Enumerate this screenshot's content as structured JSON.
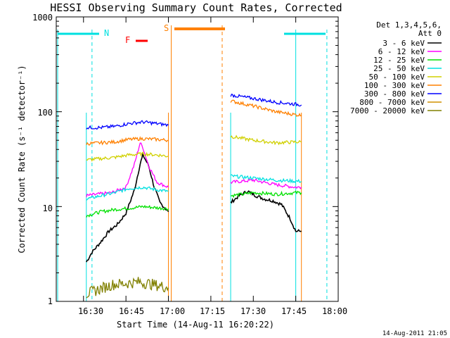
{
  "chart_data": {
    "type": "line",
    "title": "HESSI Observing Summary Count Rates, Corrected",
    "xlabel": "Start Time (14-Aug-11 16:20:22)",
    "ylabel": "Corrected Count Rate (s⁻¹ detector⁻¹)",
    "y_scale": "log",
    "ylim": [
      1,
      1000
    ],
    "xlim": [
      "16:20:22",
      "18:00:00"
    ],
    "x_ticks": [
      "16:30",
      "16:45",
      "17:00",
      "17:15",
      "17:30",
      "17:45",
      "18:00"
    ],
    "y_ticks": [
      "1",
      "10",
      "100",
      "1000"
    ],
    "footer_date": "14-Aug-2011 21:05",
    "legend": {
      "header": [
        "Det 1,3,4,5,6,",
        "Att 0"
      ],
      "placement": "right"
    },
    "flags": [
      {
        "label": "N",
        "color": "#00e0e0"
      },
      {
        "label": "F",
        "color": "#ff0000"
      },
      {
        "label": "S",
        "color": "#ff8000"
      }
    ],
    "night_intervals": [
      {
        "start": "16:20",
        "end": "16:33"
      },
      {
        "start": "17:45",
        "end": "17:56"
      }
    ],
    "saa_interval": {
      "start": "17:01",
      "end": "17:19"
    },
    "flare_interval": {
      "start": "16:50",
      "end": "16:55"
    },
    "data_segments": [
      {
        "start": "16:31",
        "end": "17:00"
      },
      {
        "start": "17:22",
        "end": "17:47"
      }
    ],
    "series": [
      {
        "name": "3 - 6 keV",
        "color": "#000000",
        "points": [
          [
            "16:31",
            2.6
          ],
          [
            "16:33",
            3.3
          ],
          [
            "16:36",
            4.2
          ],
          [
            "16:39",
            5.5
          ],
          [
            "16:42",
            6.5
          ],
          [
            "16:45",
            8.5
          ],
          [
            "16:48",
            15
          ],
          [
            "16:50",
            28
          ],
          [
            "16:51",
            35
          ],
          [
            "16:53",
            27
          ],
          [
            "16:55",
            16
          ],
          [
            "16:57",
            11
          ],
          [
            "16:59",
            9.5
          ],
          [
            "17:00",
            8.8
          ],
          [
            "17:22",
            11
          ],
          [
            "17:25",
            13
          ],
          [
            "17:28",
            14.5
          ],
          [
            "17:31",
            13
          ],
          [
            "17:34",
            12
          ],
          [
            "17:37",
            11.5
          ],
          [
            "17:40",
            10.5
          ],
          [
            "17:43",
            7.5
          ],
          [
            "17:45",
            5.5
          ],
          [
            "17:47",
            5.5
          ]
        ]
      },
      {
        "name": "6 - 12 keV",
        "color": "#ff00ff",
        "points": [
          [
            "16:31",
            13
          ],
          [
            "16:35",
            13.5
          ],
          [
            "16:40",
            14
          ],
          [
            "16:45",
            16
          ],
          [
            "16:48",
            28
          ],
          [
            "16:50",
            47
          ],
          [
            "16:51",
            42
          ],
          [
            "16:53",
            27
          ],
          [
            "16:56",
            18
          ],
          [
            "17:00",
            16
          ],
          [
            "17:22",
            18
          ],
          [
            "17:30",
            19
          ],
          [
            "17:38",
            17
          ],
          [
            "17:45",
            16
          ],
          [
            "17:47",
            16
          ]
        ]
      },
      {
        "name": "12 - 25 keV",
        "color": "#00e000",
        "points": [
          [
            "16:31",
            8
          ],
          [
            "16:36",
            8.8
          ],
          [
            "16:41",
            9.3
          ],
          [
            "16:46",
            9.6
          ],
          [
            "16:51",
            10
          ],
          [
            "16:56",
            9.7
          ],
          [
            "17:00",
            9.5
          ],
          [
            "17:22",
            13
          ],
          [
            "17:30",
            14
          ],
          [
            "17:38",
            13.5
          ],
          [
            "17:45",
            14
          ],
          [
            "17:47",
            14
          ]
        ]
      },
      {
        "name": "25 - 50 keV",
        "color": "#00e0e0",
        "points": [
          [
            "16:31",
            12
          ],
          [
            "16:36",
            13
          ],
          [
            "16:41",
            14
          ],
          [
            "16:46",
            15.5
          ],
          [
            "16:51",
            16
          ],
          [
            "16:56",
            15
          ],
          [
            "17:00",
            14.5
          ],
          [
            "17:22",
            21
          ],
          [
            "17:30",
            20
          ],
          [
            "17:38",
            19
          ],
          [
            "17:45",
            18.5
          ],
          [
            "17:47",
            18.5
          ]
        ]
      },
      {
        "name": "50 - 100 keV",
        "color": "#d0d000",
        "points": [
          [
            "16:31",
            31
          ],
          [
            "16:36",
            32
          ],
          [
            "16:41",
            33
          ],
          [
            "16:46",
            35
          ],
          [
            "16:51",
            36
          ],
          [
            "16:56",
            35
          ],
          [
            "17:00",
            34
          ],
          [
            "17:22",
            55
          ],
          [
            "17:30",
            50
          ],
          [
            "17:38",
            47
          ],
          [
            "17:45",
            48
          ],
          [
            "17:47",
            48
          ]
        ]
      },
      {
        "name": "100 - 300 keV",
        "color": "#ff8000",
        "points": [
          [
            "16:31",
            46
          ],
          [
            "16:36",
            47
          ],
          [
            "16:41",
            48
          ],
          [
            "16:46",
            51
          ],
          [
            "16:51",
            52
          ],
          [
            "16:56",
            51
          ],
          [
            "17:00",
            50
          ],
          [
            "17:22",
            130
          ],
          [
            "17:30",
            115
          ],
          [
            "17:38",
            100
          ],
          [
            "17:45",
            93
          ],
          [
            "17:47",
            92
          ]
        ]
      },
      {
        "name": "300 - 800 keV",
        "color": "#0000ff",
        "points": [
          [
            "16:31",
            68
          ],
          [
            "16:36",
            68
          ],
          [
            "16:41",
            70
          ],
          [
            "16:46",
            75
          ],
          [
            "16:51",
            78
          ],
          [
            "16:56",
            75
          ],
          [
            "17:00",
            72
          ],
          [
            "17:22",
            150
          ],
          [
            "17:30",
            138
          ],
          [
            "17:38",
            126
          ],
          [
            "17:45",
            120
          ],
          [
            "17:47",
            118
          ]
        ]
      },
      {
        "name": "800 - 7000 keV",
        "color": "#d09000",
        "points": []
      },
      {
        "name": "7000 - 20000 keV",
        "color": "#808000",
        "points": [
          [
            "16:31",
            1.2
          ],
          [
            "16:40",
            1.5
          ],
          [
            "16:50",
            1.6
          ],
          [
            "17:00",
            1.4
          ],
          [
            "17:22",
            1.5
          ],
          [
            "17:35",
            1.4
          ],
          [
            "17:47",
            1.5
          ]
        ]
      }
    ]
  }
}
